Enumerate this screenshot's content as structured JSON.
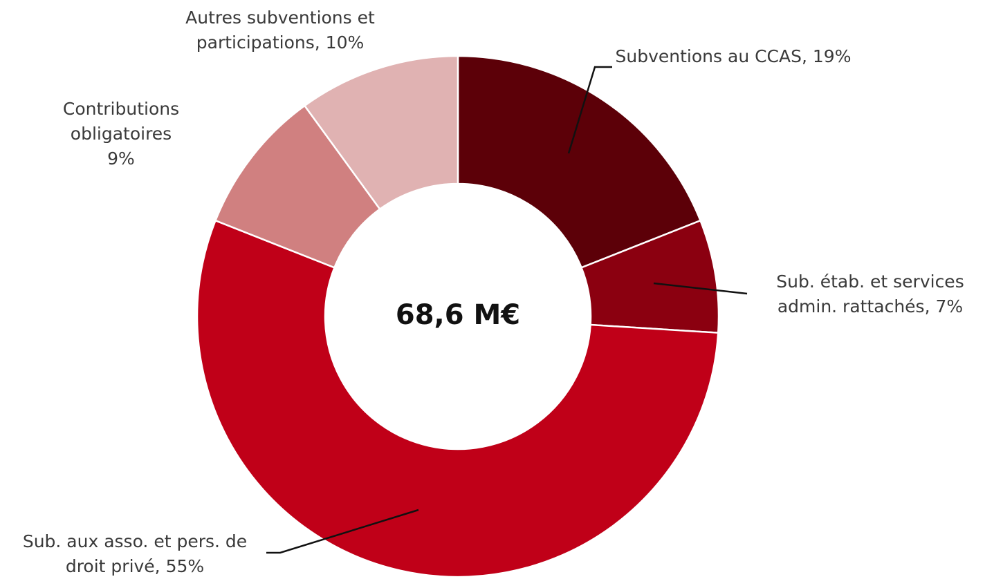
{
  "chart_data": {
    "type": "donut",
    "center_label": "68,6 M€",
    "categories": [
      "Subventions au CCAS,",
      "Sub. étab. et services admin. rattachés,",
      "Sub. aux asso. et pers. de droit privé,",
      "Contributions obligatoires",
      "Autres subventions et participations,"
    ],
    "values": [
      19,
      7,
      55,
      9,
      10
    ],
    "value_labels": [
      "19%",
      "7%",
      "55%",
      "9%",
      "10%"
    ],
    "colors": [
      "#5c0008",
      "#8b0010",
      "#c00018",
      "#d08080",
      "#e0b2b2"
    ]
  }
}
